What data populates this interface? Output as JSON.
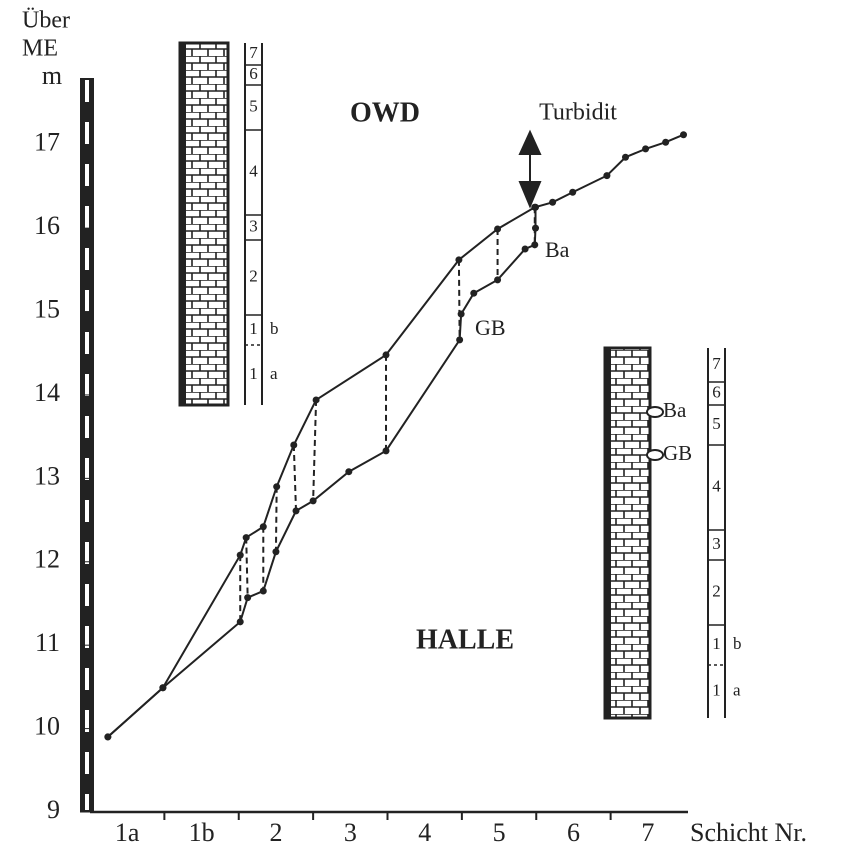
{
  "chart_data": {
    "type": "line",
    "y_label": [
      "Über",
      "ME",
      "m"
    ],
    "x_label": "Schicht Nr.",
    "categories": [
      "1a",
      "1b",
      "2",
      "3",
      "4",
      "5",
      "6",
      "7"
    ],
    "xlim": [
      0,
      8
    ],
    "ylim": [
      9,
      17.8
    ],
    "yticks": [
      9,
      10,
      11,
      12,
      13,
      14,
      15,
      16,
      17
    ],
    "series": [
      {
        "name": "OWD",
        "color": "#222222",
        "x": [
          0.24,
          0.98,
          2.02,
          2.1,
          2.33,
          2.51,
          2.74,
          3.04,
          3.98,
          4.96,
          5.48,
          5.98,
          6.22,
          6.49,
          6.95,
          7.2,
          7.47,
          7.74,
          7.98
        ],
        "values": [
          9.9,
          10.49,
          12.08,
          12.29,
          12.42,
          12.9,
          13.4,
          13.94,
          14.48,
          15.62,
          15.99,
          16.25,
          16.31,
          16.43,
          16.63,
          16.85,
          16.95,
          17.03,
          17.12
        ]
      },
      {
        "name": "HALLE",
        "color": "#222222",
        "x": [
          0.24,
          0.98,
          2.02,
          2.12,
          2.33,
          2.5,
          2.77,
          3.0,
          3.48,
          3.98,
          4.97,
          4.99,
          5.16,
          5.48,
          5.85,
          5.98,
          5.99,
          5.99
        ],
        "values": [
          9.9,
          10.49,
          11.28,
          11.57,
          11.65,
          12.12,
          12.61,
          12.73,
          13.08,
          13.33,
          14.66,
          14.97,
          15.22,
          15.38,
          15.75,
          15.8,
          16.0,
          16.25
        ]
      }
    ],
    "annotations": [
      "Turbidit",
      "GB",
      "Ba"
    ],
    "columns": [
      {
        "labels": [
          "7",
          "6",
          "5",
          "4",
          "3",
          "2",
          "1",
          "1"
        ],
        "sublabels": [
          "b",
          "a"
        ]
      },
      {
        "labels": [
          "7",
          "6",
          "5",
          "4",
          "3",
          "2",
          "1",
          "1"
        ],
        "sublabels": [
          "b",
          "a"
        ],
        "markers": [
          "Ba",
          "GB"
        ]
      }
    ]
  }
}
